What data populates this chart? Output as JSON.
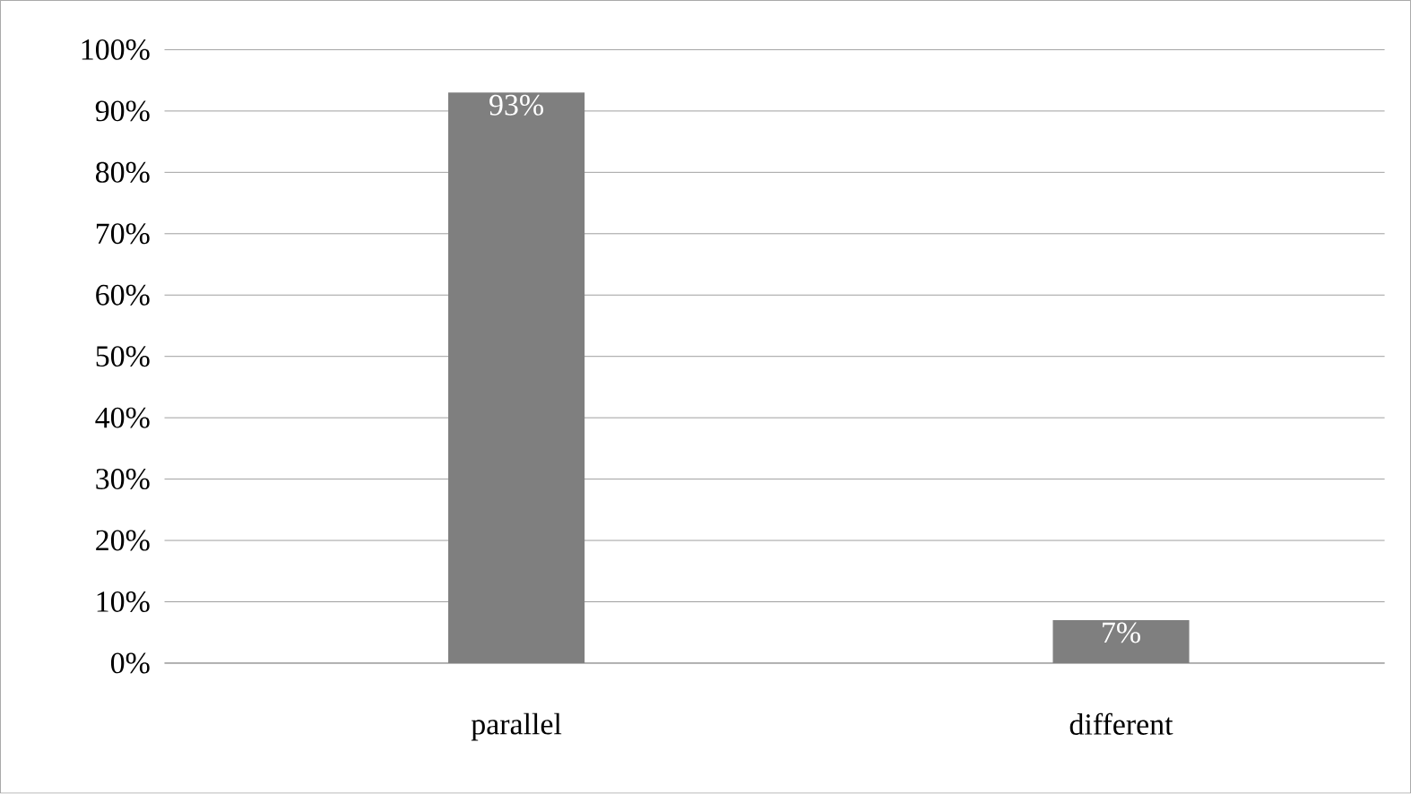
{
  "chart_data": {
    "type": "bar",
    "categories": [
      "parallel",
      "different"
    ],
    "values": [
      93,
      7
    ],
    "value_labels": [
      "93%",
      "7%"
    ],
    "color": "#7f7f7f",
    "ylim": [
      0,
      100
    ],
    "yticks": [
      {
        "value": 0,
        "label": "0%"
      },
      {
        "value": 10,
        "label": "10%"
      },
      {
        "value": 20,
        "label": "20%"
      },
      {
        "value": 30,
        "label": "30%"
      },
      {
        "value": 40,
        "label": "40%"
      },
      {
        "value": 50,
        "label": "50%"
      },
      {
        "value": 60,
        "label": "60%"
      },
      {
        "value": 70,
        "label": "70%"
      },
      {
        "value": 80,
        "label": "80%"
      },
      {
        "value": 90,
        "label": "90%"
      },
      {
        "value": 100,
        "label": "100%"
      }
    ],
    "grid": "y"
  }
}
